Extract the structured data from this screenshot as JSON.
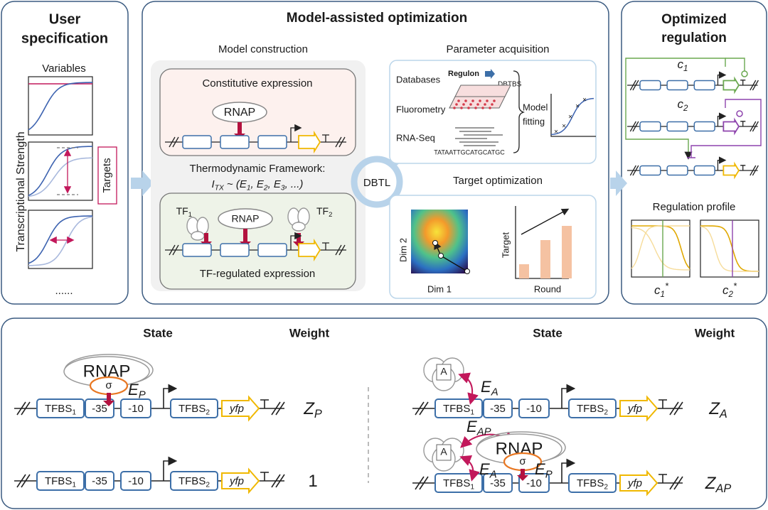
{
  "left": {
    "title": [
      "User",
      "specification"
    ],
    "variables": "Variables",
    "y_label": "Transcriptional Strength",
    "targets": "Targets",
    "ellipsis": "......"
  },
  "middle": {
    "title": "Model-assisted optimization",
    "model_construction": "Model construction",
    "constitutive": {
      "title": "Constitutive expression",
      "rnap": "RNAP"
    },
    "framework": {
      "line1": "Thermodynamic Framework:",
      "formula": [
        {
          "t": "I",
          "sub": "TX"
        },
        {
          "t": " ~ ("
        },
        {
          "t": "E",
          "sub": "1"
        },
        {
          "t": ", "
        },
        {
          "t": "E",
          "sub": "2"
        },
        {
          "t": ", "
        },
        {
          "t": "E",
          "sub": "3"
        },
        {
          "t": ", ...)"
        }
      ]
    },
    "tf_regulated": {
      "title": "TF-regulated expression",
      "tf1": {
        "t": "TF",
        "sub": "1"
      },
      "rnap": "RNAP",
      "tf2": {
        "t": "TF",
        "sub": "2"
      }
    },
    "dbtl": "DBTL",
    "parameter_acquisition": {
      "title": "Parameter acquisition",
      "databases": "Databases",
      "regulon": "Regulon",
      "dbtbs": "DBTBS",
      "fluorometry": "Fluorometry",
      "rna_seq": "RNA-Seq",
      "sequence": "TATAATTGCATGCATGC",
      "model_fitting": [
        "Model",
        "fitting"
      ]
    },
    "target_optimization": {
      "title": "Target optimization",
      "dim2": "Dim 2",
      "dim1": "Dim 1",
      "target": "Target",
      "round": "Round"
    }
  },
  "right": {
    "title": [
      "Optimized",
      "regulation"
    ],
    "c1": {
      "t": "c",
      "sub": "1"
    },
    "c2": {
      "t": "c",
      "sub": "2"
    },
    "profile": "Regulation profile",
    "c1_star": {
      "t": "c",
      "sub": "1",
      "sup": "*"
    },
    "c2_star": {
      "t": "c",
      "sub": "2",
      "sup": "*"
    }
  },
  "bottom": {
    "headers": [
      "State",
      "Weight",
      "State",
      "Weight"
    ],
    "rows": [
      {
        "parts": [
          {
            "t": "TFBS",
            "sub": "1"
          },
          {
            "t": "-35"
          },
          {
            "t": "-10"
          },
          {
            "t": "TFBS",
            "sub": "2"
          },
          {
            "t": "yfp"
          }
        ],
        "rnap": "RNAP",
        "sigma": "σ",
        "e_p": {
          "t": "E",
          "sub": "P"
        },
        "weight": {
          "t": "Z",
          "sub": "P"
        }
      },
      {
        "parts": [
          {
            "t": "TFBS",
            "sub": "1"
          },
          {
            "t": "-35"
          },
          {
            "t": "-10"
          },
          {
            "t": "TFBS",
            "sub": "2"
          },
          {
            "t": "yfp"
          }
        ],
        "weight": {
          "t": "1"
        }
      },
      {
        "parts": [
          {
            "t": "TFBS",
            "sub": "1"
          },
          {
            "t": "-35"
          },
          {
            "t": "-10"
          },
          {
            "t": "TFBS",
            "sub": "2"
          },
          {
            "t": "yfp"
          }
        ],
        "activator": "A",
        "e_a": {
          "t": "E",
          "sub": "A"
        },
        "weight": {
          "t": "Z",
          "sub": "A"
        }
      },
      {
        "parts": [
          {
            "t": "TFBS",
            "sub": "1"
          },
          {
            "t": "-35"
          },
          {
            "t": "-10"
          },
          {
            "t": "TFBS",
            "sub": "2"
          },
          {
            "t": "yfp"
          }
        ],
        "activator": "A",
        "e_ap": {
          "t": "E",
          "sub": "AP"
        },
        "rnap": "RNAP",
        "sigma": "σ",
        "e_a": {
          "t": "E",
          "sub": "A"
        },
        "e_p": {
          "t": "E",
          "sub": "P"
        },
        "weight": {
          "t": "Z",
          "sub": "AP"
        }
      }
    ]
  }
}
